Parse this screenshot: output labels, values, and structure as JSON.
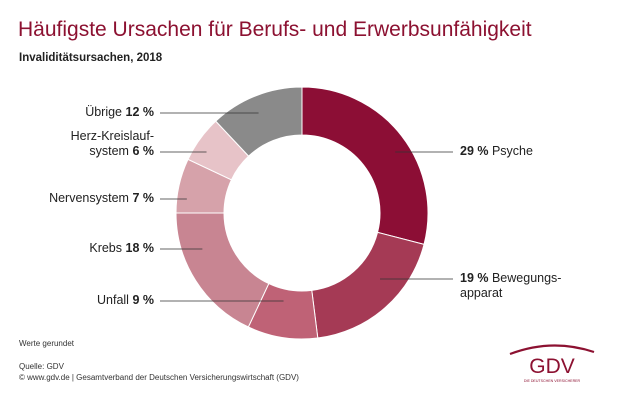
{
  "title": "Häufigste Ursachen für Berufs- und Erwerbsunfähigkeit",
  "subtitle": "Invaliditätsursachen, 2018",
  "chart_data": {
    "type": "pie",
    "variant": "donut",
    "title": "Häufigste Ursachen für Berufs- und Erwerbsunfähigkeit",
    "subtitle": "Invaliditätsursachen, 2018",
    "unit": "%",
    "slices": [
      {
        "label": "Psyche",
        "label_lines": [
          "Psyche"
        ],
        "value": 29,
        "value_text": "29 %",
        "color": "#8c0e35",
        "side": "right"
      },
      {
        "label": "Bewegungsapparat",
        "label_lines": [
          "Bewegungs-",
          "apparat"
        ],
        "value": 19,
        "value_text": "19 %",
        "color": "#a53a55",
        "side": "right"
      },
      {
        "label": "Unfall",
        "label_lines": [
          "Unfall"
        ],
        "value": 9,
        "value_text": "9 %",
        "color": "#bf6276",
        "side": "left"
      },
      {
        "label": "Krebs",
        "label_lines": [
          "Krebs"
        ],
        "value": 18,
        "value_text": "18 %",
        "color": "#c88592",
        "side": "left"
      },
      {
        "label": "Nervensystem",
        "label_lines": [
          "Nervensystem"
        ],
        "value": 7,
        "value_text": "7 %",
        "color": "#d6a2aa",
        "side": "left"
      },
      {
        "label": "Herz-Kreislaufsystem",
        "label_lines": [
          "Herz-Kreislauf-",
          "system"
        ],
        "value": 6,
        "value_text": "6 %",
        "color": "#e7c3c8",
        "side": "left"
      },
      {
        "label": "Übrige",
        "label_lines": [
          "Übrige"
        ],
        "value": 12,
        "value_text": "12 %",
        "color": "#8a8a8a",
        "side": "left"
      }
    ]
  },
  "footer": {
    "note": "Werte gerundet",
    "source_line1": "Quelle: GDV",
    "source_line2": "© www.gdv.de | Gesamtverband der Deutschen Versicherungswirtschaft (GDV)"
  },
  "logo": {
    "text": "GDV",
    "tagline": "DIE DEUTSCHEN VERSICHERER",
    "color": "#8c1131"
  }
}
